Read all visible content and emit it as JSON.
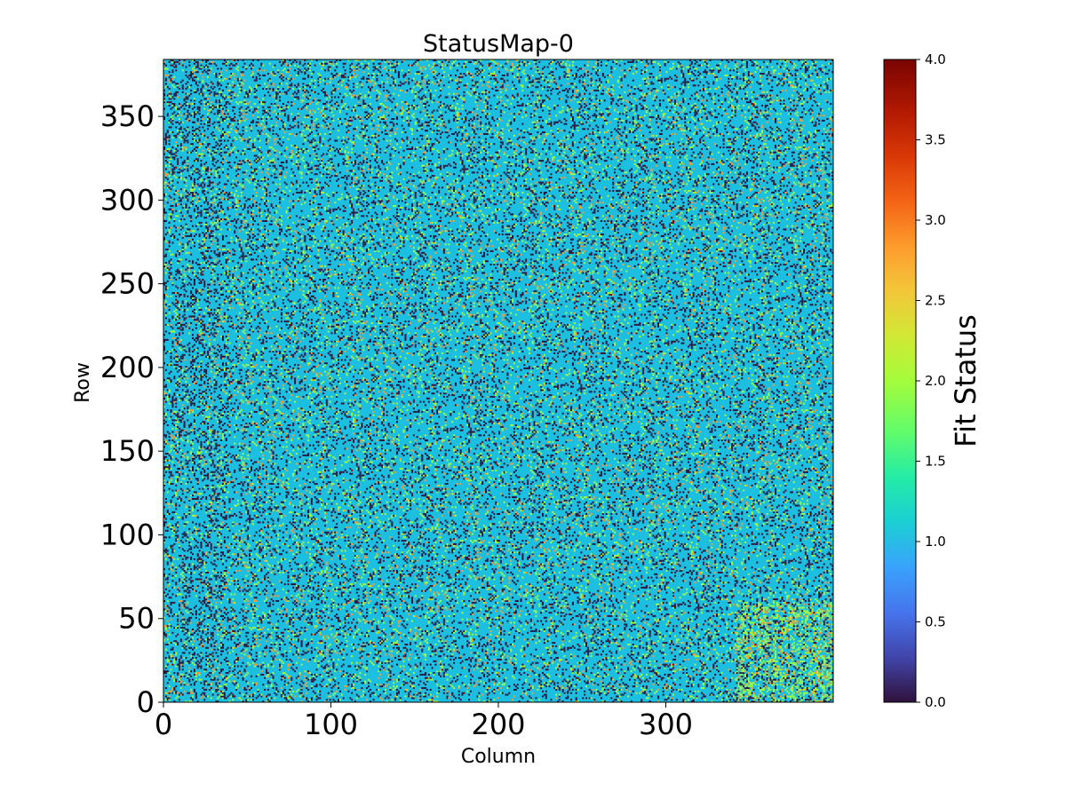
{
  "chart_data": {
    "type": "heatmap",
    "title": "StatusMap-0",
    "xlabel": "Column",
    "ylabel": "Row",
    "colorbar_label": "Fit Status",
    "colormap": "turbo",
    "xlim": [
      0,
      400
    ],
    "ylim": [
      0,
      384
    ],
    "x_ticks": [
      0,
      100,
      200,
      300
    ],
    "x_tick_labels": [
      "0",
      "100",
      "200",
      "300"
    ],
    "y_ticks": [
      0,
      50,
      100,
      150,
      200,
      250,
      300,
      350
    ],
    "y_tick_labels": [
      "0",
      "50",
      "100",
      "150",
      "200",
      "250",
      "300",
      "350"
    ],
    "color_range": [
      0.0,
      4.0
    ],
    "colorbar_ticks": [
      0.0,
      0.5,
      1.0,
      1.5,
      2.0,
      2.5,
      3.0,
      3.5,
      4.0
    ],
    "colorbar_tick_labels": [
      "0.0",
      "0.5",
      "1.0",
      "1.5",
      "2.0",
      "2.5",
      "3.0",
      "3.5",
      "4.0"
    ],
    "values": [
      0,
      1,
      2,
      3,
      4
    ],
    "dominant_value": 1,
    "grid": false,
    "legend": "colorbar-right"
  }
}
